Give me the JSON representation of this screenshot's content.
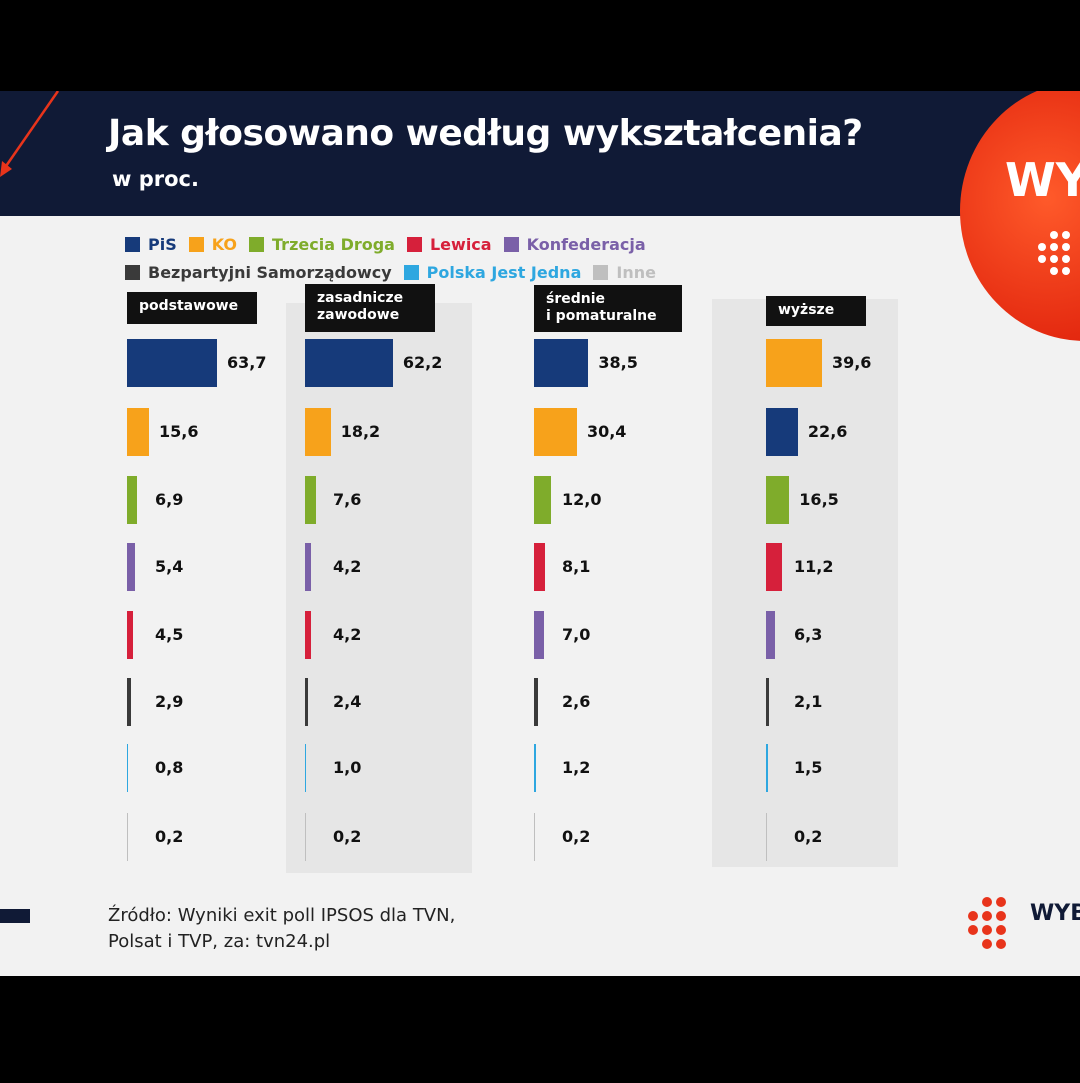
{
  "header": {
    "title": "Jak głosowano według wykształcenia?",
    "subtitle": "w proc.",
    "brand": "WY"
  },
  "footer": {
    "source": "Źródło: Wyniki exit poll IPSOS dla TVN,\nPolsat i TVP, za: tvn24.pl",
    "brand": "WYB"
  },
  "colors": {
    "header_bg": "#101a36",
    "accent_red": "#e8341b"
  },
  "chart_data": {
    "type": "bar",
    "title": "Jak głosowano według wykształcenia?",
    "subtitle": "w proc.",
    "legend": [
      {
        "name": "PiS",
        "color": "#163a7a"
      },
      {
        "name": "KO",
        "color": "#f7a21b"
      },
      {
        "name": "Trzecia Droga",
        "color": "#7fac2b"
      },
      {
        "name": "Lewica",
        "color": "#d6203b"
      },
      {
        "name": "Konfederacja",
        "color": "#7a60a8"
      },
      {
        "name": "Bezpartyjni Samorządowcy",
        "color": "#3a3a3a"
      },
      {
        "name": "Polska Jest Jedna",
        "color": "#2ea7e0"
      },
      {
        "name": "Inne",
        "color": "#bfbfbf"
      }
    ],
    "groups": [
      {
        "label": "podstawowe",
        "bars": [
          {
            "party": "PiS",
            "value": 63.7,
            "label": "63,7"
          },
          {
            "party": "KO",
            "value": 15.6,
            "label": "15,6"
          },
          {
            "party": "Trzecia Droga",
            "value": 6.9,
            "label": "6,9"
          },
          {
            "party": "Konfederacja",
            "value": 5.4,
            "label": "5,4"
          },
          {
            "party": "Lewica",
            "value": 4.5,
            "label": "4,5"
          },
          {
            "party": "Bezpartyjni Samorządowcy",
            "value": 2.9,
            "label": "2,9"
          },
          {
            "party": "Polska Jest Jedna",
            "value": 0.8,
            "label": "0,8"
          },
          {
            "party": "Inne",
            "value": 0.2,
            "label": "0,2"
          }
        ]
      },
      {
        "label": "zasadnicze\nzawodowe",
        "bars": [
          {
            "party": "PiS",
            "value": 62.2,
            "label": "62,2"
          },
          {
            "party": "KO",
            "value": 18.2,
            "label": "18,2"
          },
          {
            "party": "Trzecia Droga",
            "value": 7.6,
            "label": "7,6"
          },
          {
            "party": "Konfederacja",
            "value": 4.2,
            "label": "4,2"
          },
          {
            "party": "Lewica",
            "value": 4.2,
            "label": "4,2"
          },
          {
            "party": "Bezpartyjni Samorządowcy",
            "value": 2.4,
            "label": "2,4"
          },
          {
            "party": "Polska Jest Jedna",
            "value": 1.0,
            "label": "1,0"
          },
          {
            "party": "Inne",
            "value": 0.2,
            "label": "0,2"
          }
        ]
      },
      {
        "label": "średnie\ni pomaturalne",
        "bars": [
          {
            "party": "PiS",
            "value": 38.5,
            "label": "38,5"
          },
          {
            "party": "KO",
            "value": 30.4,
            "label": "30,4"
          },
          {
            "party": "Trzecia Droga",
            "value": 12.0,
            "label": "12,0"
          },
          {
            "party": "Lewica",
            "value": 8.1,
            "label": "8,1"
          },
          {
            "party": "Konfederacja",
            "value": 7.0,
            "label": "7,0"
          },
          {
            "party": "Bezpartyjni Samorządowcy",
            "value": 2.6,
            "label": "2,6"
          },
          {
            "party": "Polska Jest Jedna",
            "value": 1.2,
            "label": "1,2"
          },
          {
            "party": "Inne",
            "value": 0.2,
            "label": "0,2"
          }
        ]
      },
      {
        "label": "wyższe",
        "bars": [
          {
            "party": "KO",
            "value": 39.6,
            "label": "39,6"
          },
          {
            "party": "PiS",
            "value": 22.6,
            "label": "22,6"
          },
          {
            "party": "Trzecia Droga",
            "value": 16.5,
            "label": "16,5"
          },
          {
            "party": "Lewica",
            "value": 11.2,
            "label": "11,2"
          },
          {
            "party": "Konfederacja",
            "value": 6.3,
            "label": "6,3"
          },
          {
            "party": "Bezpartyjni Samorządowcy",
            "value": 2.1,
            "label": "2,1"
          },
          {
            "party": "Polska Jest Jedna",
            "value": 1.5,
            "label": "1,5"
          },
          {
            "party": "Inne",
            "value": 0.2,
            "label": "0,2"
          }
        ]
      }
    ]
  }
}
